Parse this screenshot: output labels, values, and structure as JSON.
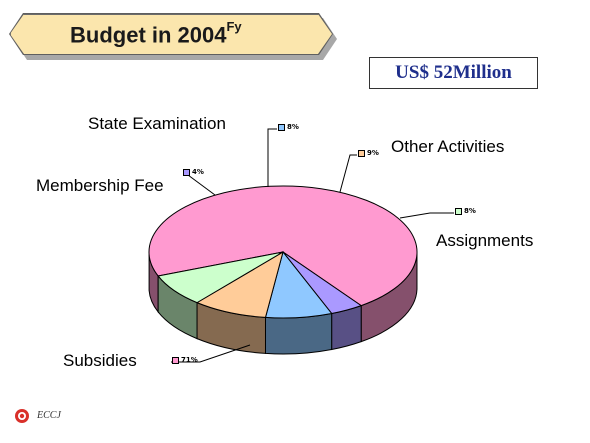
{
  "header": {
    "title": "Budget in 2004",
    "title_sup": "Fy",
    "amount": "US$ 52Million"
  },
  "footer": {
    "org": "ECCJ"
  },
  "chart_data": {
    "type": "pie",
    "title": "Budget in 2004Fy",
    "slices": [
      {
        "label": "Subsidies",
        "value": 71,
        "pct_text": "71%",
        "color": "#ff9ad0"
      },
      {
        "label": "Membership Fee",
        "value": 4,
        "pct_text": "4%",
        "color": "#aa99ff"
      },
      {
        "label": "State Examination",
        "value": 8,
        "pct_text": "8%",
        "color": "#8fc8ff"
      },
      {
        "label": "Other Activities",
        "value": 9,
        "pct_text": "9%",
        "color": "#ffcc99"
      },
      {
        "label": "Assignments",
        "value": 8,
        "pct_text": "8%",
        "color": "#ccffcc"
      }
    ]
  }
}
